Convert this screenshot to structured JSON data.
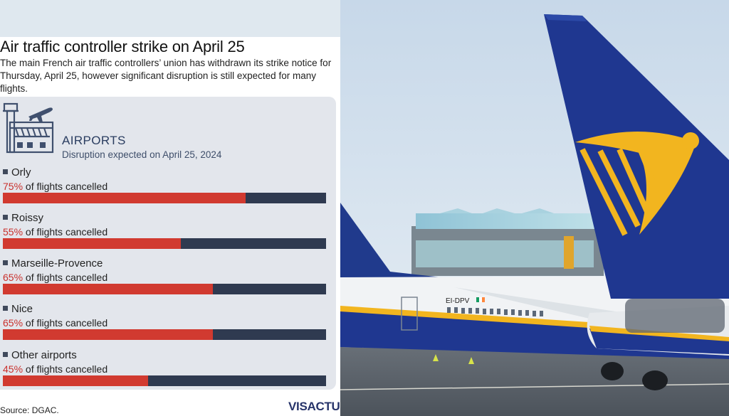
{
  "infographic": {
    "title": "Air traffic controller strike on April 25",
    "subtitle": "The main French air traffic controllers’ union has withdrawn its strike notice for Thursday, April 25, however significant disruption is still expected for many flights.",
    "section_title": "AIRPORTS",
    "section_subtitle": "Disruption expected on April 25, 2024",
    "stat_suffix": " of flights cancelled",
    "source": "Source: DGAC.",
    "logo": "VISACTU",
    "icons": [
      "control-tower-icon",
      "airplane-icon"
    ],
    "colors": {
      "cancelled": "#d13a30",
      "remaining": "#2f3a50",
      "percent_text": "#c9302c"
    }
  },
  "chart_data": {
    "type": "bar",
    "title": "AIRPORTS",
    "subtitle": "Disruption expected on April 25, 2024",
    "categories": [
      "Orly",
      "Roissy",
      "Marseille-Provence",
      "Nice",
      "Other airports"
    ],
    "values": [
      75,
      55,
      65,
      65,
      45
    ],
    "value_labels": [
      "75%",
      "55%",
      "65%",
      "65%",
      "45%"
    ],
    "unit": "%",
    "ylim": [
      0,
      100
    ],
    "orientation": "horizontal"
  },
  "photo": {
    "aircraft_registration": "EI-DPV"
  }
}
